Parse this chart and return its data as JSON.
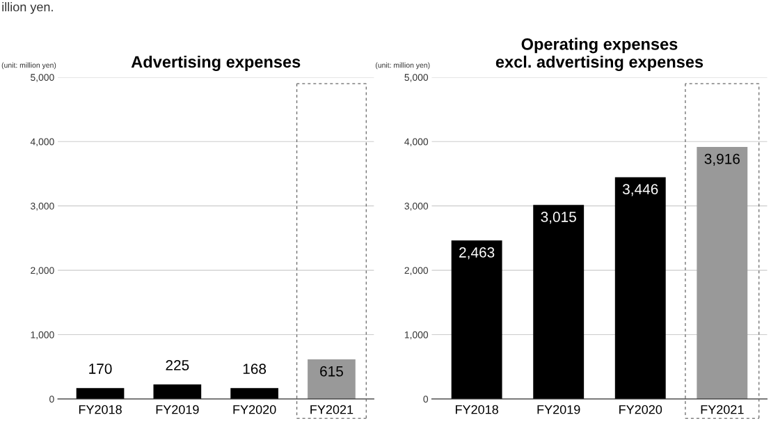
{
  "chart_data": [
    {
      "type": "bar",
      "title": "Advertising expenses",
      "categories": [
        "FY2018",
        "FY2019",
        "FY2020",
        "FY2021"
      ],
      "values": [
        170,
        225,
        168,
        615
      ],
      "colors": [
        "#000000",
        "#000000",
        "#000000",
        "#999999"
      ],
      "ylim": [
        0,
        5000
      ],
      "yticks": [
        0,
        {
          "value": 1000,
          "label": "1,000"
        },
        {
          "value": 2000,
          "label": "2,000"
        },
        {
          "value": 3000,
          "label": "3,000"
        },
        {
          "value": 4000,
          "label": "4,000"
        },
        {
          "value": 5000,
          "label": "5,000"
        }
      ],
      "value_labels": [
        "170",
        "225",
        "168",
        "615"
      ],
      "grid": "y",
      "annotations": [
        "illion yen.",
        "(unit: million yen)"
      ]
    },
    {
      "type": "bar",
      "title": "Operating expenses\nexcl. advertising expenses",
      "categories": [
        "FY2018",
        "FY2019",
        "FY2020",
        "FY2021"
      ],
      "values": [
        2463,
        3015,
        3446,
        3916
      ],
      "colors": [
        "#000000",
        "#000000",
        "#000000",
        "#999999"
      ],
      "ylim": [
        0,
        5000
      ],
      "yticks": [
        0,
        {
          "value": 1000,
          "label": "1,000"
        },
        {
          "value": 2000,
          "label": "2,000"
        },
        {
          "value": 3000,
          "label": "3,000"
        },
        {
          "value": 4000,
          "label": "4,000"
        },
        {
          "value": 5000,
          "label": "5,000"
        }
      ],
      "value_labels": [
        "2,463",
        "3,015",
        "3,446",
        "3,916"
      ],
      "grid": "y",
      "annotations": [
        "(unit: million yen)"
      ]
    }
  ]
}
